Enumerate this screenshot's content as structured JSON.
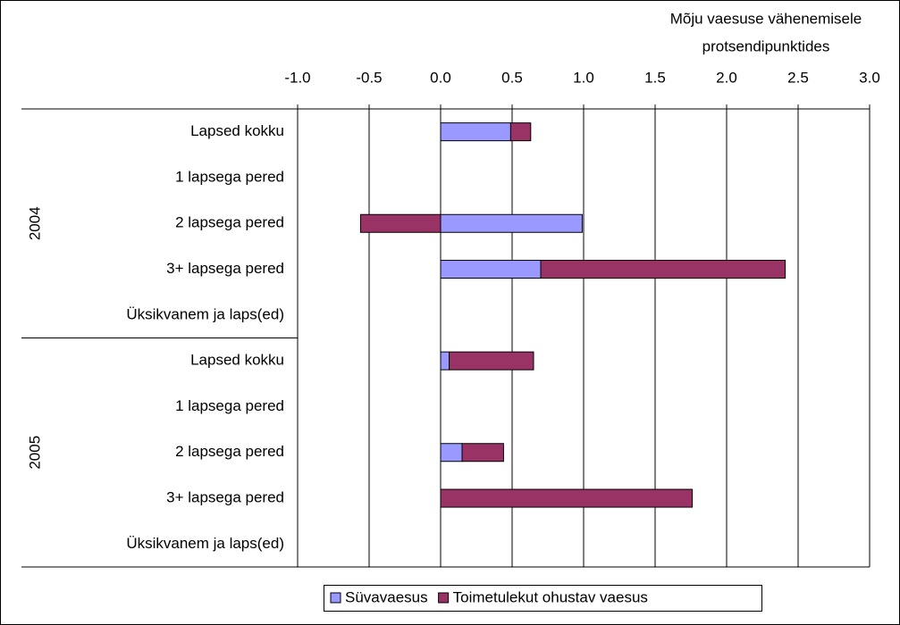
{
  "chart_data": {
    "type": "bar",
    "orientation": "horizontal",
    "stacked": true,
    "x_label": [
      "Mõju vaesuse vähenemisele",
      "protsendipunktides"
    ],
    "groups": [
      {
        "name": "2004",
        "categories": [
          "Lapsed kokku",
          "1 lapsega pered",
          "2 lapsega pered",
          "3+ lapsega pered",
          "Üksikvanem ja laps(ed)"
        ]
      },
      {
        "name": "2005",
        "categories": [
          "Lapsed kokku",
          "1 lapsega pered",
          "2 lapsega pered",
          "3+ lapsega pered",
          "Üksikvanem ja laps(ed)"
        ]
      }
    ],
    "series": [
      {
        "name": "Süvavaesus",
        "color": "#9999ff",
        "values": [
          [
            0.49,
            null,
            0.99,
            0.7,
            null
          ],
          [
            0.06,
            null,
            0.15,
            0,
            null
          ]
        ]
      },
      {
        "name": "Toimetulekut ohustav vaesus",
        "color": "#993366",
        "values": [
          [
            0.14,
            null,
            -0.56,
            1.71,
            null
          ],
          [
            0.59,
            null,
            0.29,
            1.76,
            null
          ]
        ]
      }
    ],
    "xlim": [
      -1,
      3
    ],
    "xticks": [
      {
        "value": -1,
        "label": "-1.0"
      },
      -0.5,
      {
        "value": 0,
        "label": "0.0"
      },
      0.5,
      {
        "value": 1,
        "label": "1.0"
      },
      1.5,
      {
        "value": 2,
        "label": "2.0"
      },
      2.5,
      {
        "value": 3,
        "label": "3.0"
      }
    ],
    "grid": true,
    "legend": "bottom"
  }
}
